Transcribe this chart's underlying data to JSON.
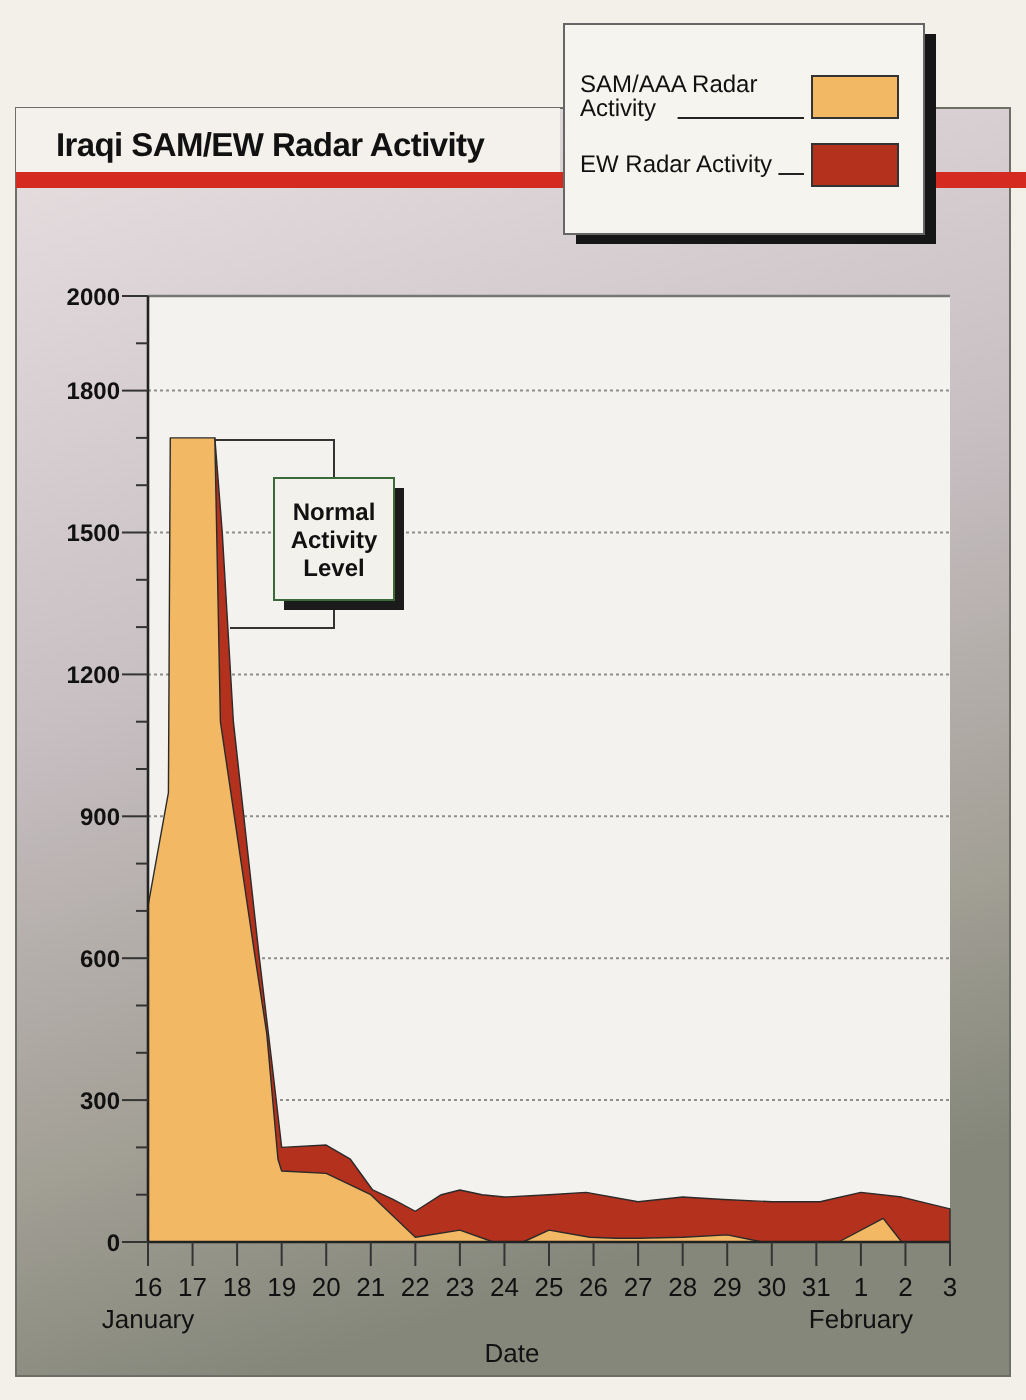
{
  "chart_data": {
    "type": "area",
    "title": "Iraqi SAM/EW Radar Activity",
    "xlabel": "Date",
    "xlim": [
      "--01-16",
      "--02-03"
    ],
    "xticks": [
      {
        "value": "--01-16",
        "label": "16"
      },
      {
        "value": "--01-17",
        "label": "17"
      },
      {
        "value": "--01-18",
        "label": "18"
      },
      {
        "value": "--01-19",
        "label": "19"
      },
      {
        "value": "--01-20",
        "label": "20"
      },
      {
        "value": "--01-21",
        "label": "21"
      },
      {
        "value": "--01-22",
        "label": "22"
      },
      {
        "value": "--01-23",
        "label": "23"
      },
      {
        "value": "--01-24",
        "label": "24"
      },
      {
        "value": "--01-25",
        "label": "25"
      },
      {
        "value": "--01-26",
        "label": "26"
      },
      {
        "value": "--01-27",
        "label": "27"
      },
      {
        "value": "--01-28",
        "label": "28"
      },
      {
        "value": "--01-29",
        "label": "29"
      },
      {
        "value": "--01-30",
        "label": "30"
      },
      {
        "value": "--01-31",
        "label": "31"
      },
      {
        "value": "--02-01",
        "label": "1"
      },
      {
        "value": "--02-02",
        "label": "2"
      },
      {
        "value": "--02-03",
        "label": "3"
      }
    ],
    "x2lim": [
      "--01-16",
      "--02-03"
    ],
    "x2ticks": [
      {
        "value": "--01-16",
        "label": "January"
      },
      {
        "value": "--02-01",
        "label": "February"
      }
    ],
    "ylim": [
      0,
      2000
    ],
    "yticks": [
      0,
      {
        "value": 100,
        "label": null
      },
      {
        "value": 200,
        "label": null
      },
      300,
      {
        "value": 400,
        "label": null
      },
      {
        "value": 500,
        "label": null
      },
      600,
      {
        "value": 700,
        "label": null
      },
      {
        "value": 800,
        "label": null
      },
      900,
      {
        "value": 1000,
        "label": null
      },
      {
        "value": 1100,
        "label": null
      },
      1200,
      {
        "value": 1300,
        "label": null
      },
      {
        "value": 1400,
        "label": null
      },
      1500,
      {
        "value": 1600,
        "label": null
      },
      {
        "value": 1700,
        "label": null
      },
      1800,
      {
        "value": 1900,
        "label": null
      },
      2000
    ],
    "grid": "y",
    "legend": "top right",
    "series": [
      {
        "name": "SAM/AAA Radar Activity",
        "color": "#f2b864",
        "x": [
          "--01-16",
          "--01-16T11:00",
          "--01-16T12:00",
          "--01-17T12:00",
          "--01-17T13:00",
          "--01-17T15:00",
          "--01-18T09:00",
          "--01-18T16:00",
          "--01-18T22:00",
          "--01-19",
          "--01-20",
          "--01-21",
          "--01-22",
          "--01-23",
          "--01-23T18:00",
          "--01-24T10:00",
          "--01-25",
          "--01-25T22:00",
          "--01-26T12:00",
          "--01-27",
          "--01-28",
          "--01-29",
          "--01-29T19:00",
          "--01-31T12:00",
          "--02-01T12:00",
          "--02-01T22:00",
          "--02-03"
        ],
        "values": [
          710,
          950,
          1700,
          1700,
          1500,
          1100,
          620,
          440,
          175,
          150,
          145,
          100,
          10,
          25,
          0,
          0,
          25,
          10,
          8,
          8,
          10,
          15,
          0,
          0,
          50,
          0,
          0
        ]
      },
      {
        "name": "EW Radar Activity",
        "color": "#b3311d",
        "x": [
          "--01-17T12:00",
          "--01-17T16:00",
          "--01-17T22:00",
          "--01-18T12:00",
          "--01-18T19:00",
          "--01-19",
          "--01-20",
          "--01-20T13:00",
          "--01-21T01:00",
          "--01-21T12:00",
          "--01-22",
          "--01-22T14:00",
          "--01-23",
          "--01-23T12:00",
          "--01-24",
          "--01-25",
          "--01-25T20:00",
          "--01-27",
          "--01-28",
          "--01-28T22:00",
          "--01-30",
          "--01-31T02:00",
          "--02-01",
          "--02-01T22:00",
          "--02-03"
        ],
        "values": [
          1700,
          1500,
          1100,
          600,
          370,
          200,
          205,
          175,
          110,
          90,
          65,
          100,
          110,
          100,
          95,
          100,
          105,
          85,
          95,
          90,
          85,
          85,
          105,
          95,
          70
        ]
      }
    ],
    "annotations": [
      "Normal Activity Level"
    ]
  }
}
